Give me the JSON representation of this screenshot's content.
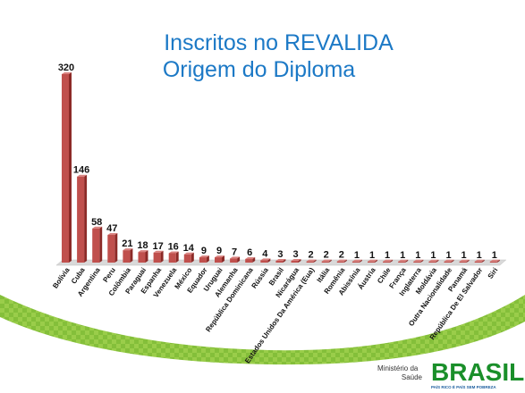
{
  "slide": {
    "title_line1": "Inscritos no REVALIDA",
    "title_line2": "Origem do Diploma",
    "footer_ministry_line1": "Ministério da",
    "footer_ministry_line2": "Saúde",
    "footer_brand": "BRASIL",
    "footer_brand_slogan": "PAÍS RICO É PAÍS SEM POBREZA"
  },
  "colors": {
    "title": "#1c79c6",
    "bar": "#c0504d",
    "bar_dark": "#8c2a27",
    "footer_green": "#8cc63f",
    "brand_green": "#1a8f2a"
  },
  "chart_data": {
    "type": "bar",
    "title": "Inscritos no REVALIDA Origem do Diploma",
    "xlabel": "",
    "ylabel": "",
    "ylim": [
      0,
      320
    ],
    "grid": false,
    "legend": "none",
    "categories": [
      "Bolívia",
      "Cuba",
      "Argentina",
      "Peru",
      "Colômbia",
      "Paraguai",
      "Espanha",
      "Venezuela",
      "México",
      "Equador",
      "Uruguai",
      "Alemanha",
      "República Dominicana",
      "Rússia",
      "Brasil",
      "Nicarágua",
      "Estados Unidos Da América (Eua)",
      "Itália",
      "Romênia",
      "Abissínia",
      "Áustria",
      "Chile",
      "França",
      "Inglaterra",
      "Moldávia",
      "Outra Nacionalidade",
      "Panamá",
      "República De El Salvador",
      "Siri"
    ],
    "values": [
      320,
      146,
      58,
      47,
      21,
      18,
      17,
      16,
      14,
      9,
      9,
      7,
      6,
      4,
      3,
      3,
      2,
      2,
      2,
      1,
      1,
      1,
      1,
      1,
      1,
      1,
      1,
      1,
      1
    ]
  }
}
